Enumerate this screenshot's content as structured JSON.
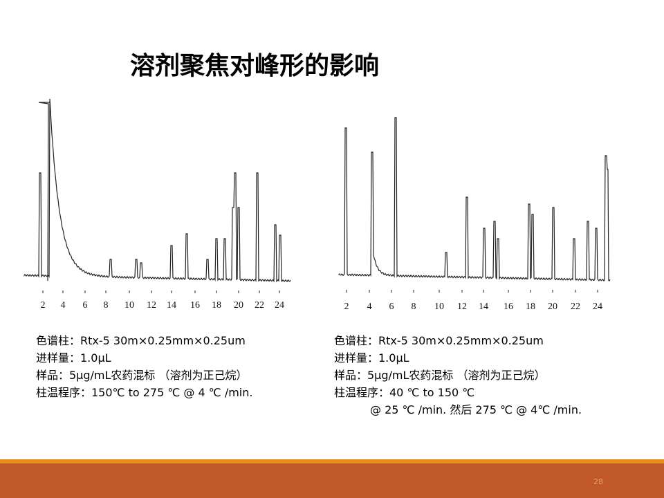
{
  "title": "溶剂聚焦对峰形的影响",
  "chromatograms": [
    {
      "ticks": [
        "2",
        "4",
        "6",
        "8",
        "10",
        "12",
        "14",
        "16",
        "18",
        "20",
        "22",
        "24"
      ],
      "caption": [
        "色谱柱：Rtx-5 30m×0.25mm×0.25um",
        "进样量：1.0μL",
        "样品：5μg/mL农药混标 （溶剂为正己烷）",
        "柱温程序：150℃ to 275 ℃ @ 4 ℃ /min."
      ]
    },
    {
      "ticks": [
        "2",
        "4",
        "6",
        "8",
        "10",
        "12",
        "14",
        "16",
        "18",
        "20",
        "22",
        "24"
      ],
      "caption": [
        "色谱柱：Rtx-5 30m×0.25mm×0.25um",
        "进样量：1.0μL",
        "样品：5μg/mL农药混标 （溶剂为正己烷）",
        "柱温程序：40 ℃ to 150 ℃",
        "@ 25 ℃ /min. 然后 275 ℃ @ 4℃ /min."
      ]
    }
  ],
  "page_number": "28"
}
